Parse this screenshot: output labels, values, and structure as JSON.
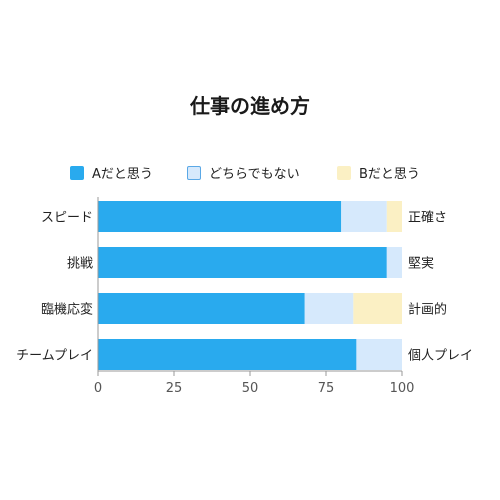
{
  "chart_data": {
    "type": "bar",
    "orientation": "horizontal",
    "stacked": true,
    "title": "仕事の進め方",
    "categories": [
      "スピード",
      "挑戦",
      "臨機応変",
      "チームプレイ"
    ],
    "right_labels": [
      "正確さ",
      "堅実",
      "計画的",
      "個人プレイ"
    ],
    "series": [
      {
        "name": "Aだと思う",
        "color": "#29aaee",
        "values": [
          80,
          95,
          68,
          85
        ]
      },
      {
        "name": "どちらでもない",
        "color": "#d6e9fc",
        "values": [
          15,
          5,
          16,
          15
        ]
      },
      {
        "name": "Bだと思う",
        "color": "#fbf0c4",
        "values": [
          5,
          0,
          16,
          0
        ]
      }
    ],
    "xlim": [
      0,
      100
    ],
    "xticks": [
      0,
      25,
      50,
      75,
      100
    ],
    "legend_position": "top",
    "grid": false
  }
}
